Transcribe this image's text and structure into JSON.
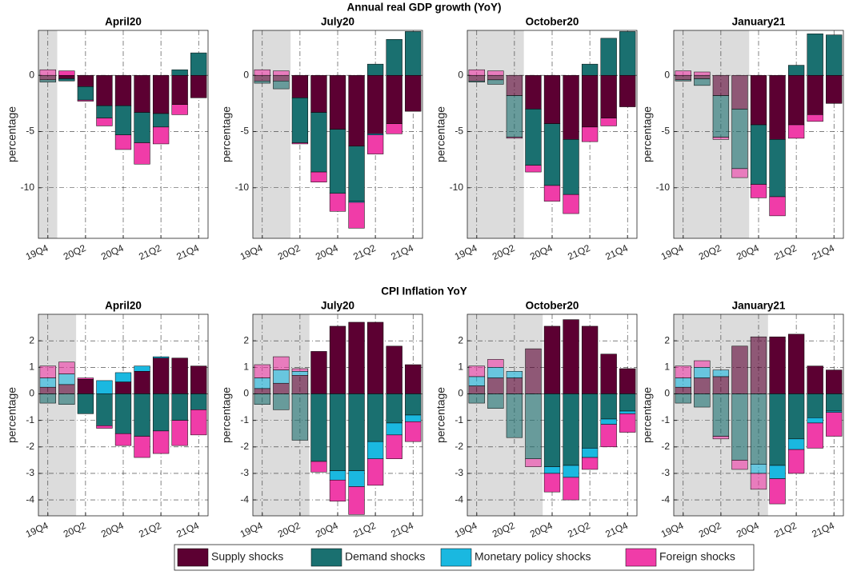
{
  "chart_data": [
    {
      "type": "stacked_bar",
      "suptitle": "Annual real GDP growth (YoY)",
      "title": "April20",
      "ylabel": "percentage",
      "categories": [
        "19Q4",
        null,
        "20Q2",
        null,
        "20Q4",
        null,
        "21Q2",
        null,
        "21Q4"
      ],
      "ylim": [
        -14.5,
        4
      ],
      "yticks": [
        -10,
        -5,
        0
      ],
      "grid": true,
      "shaded_until": 0.5,
      "series": [
        {
          "name": "Supply shocks",
          "color": "#5c0032",
          "values": [
            -0.4,
            -0.3,
            -1.0,
            -2.7,
            -2.7,
            -3.3,
            -3.4,
            -2.6,
            -2.0
          ]
        },
        {
          "name": "Demand shocks",
          "color": "#1a7070",
          "values": [
            -0.2,
            -0.2,
            -1.2,
            -1.1,
            -2.6,
            -2.7,
            -1.2,
            0.5,
            2.0
          ]
        },
        {
          "name": "Monetary policy shocks",
          "color": "#1ab8e0",
          "values": [
            0,
            0,
            0,
            0,
            0,
            0,
            0,
            0,
            0
          ]
        },
        {
          "name": "Foreign shocks",
          "color": "#f03ca8",
          "values": [
            0.5,
            0.4,
            -0.1,
            -0.7,
            -1.3,
            -1.9,
            -1.5,
            -0.9,
            0
          ]
        }
      ]
    },
    {
      "type": "stacked_bar",
      "title": "July20",
      "ylabel": "percentage",
      "categories": [
        "19Q4",
        null,
        "20Q2",
        null,
        "20Q4",
        null,
        "21Q2",
        null,
        "21Q4"
      ],
      "ylim": [
        -14.5,
        4
      ],
      "yticks": [
        -10,
        -5,
        0
      ],
      "grid": true,
      "shaded_until": 1.5,
      "series": [
        {
          "name": "Supply shocks",
          "color": "#5c0032",
          "values": [
            -0.5,
            -0.5,
            -2.0,
            -3.3,
            -4.8,
            -6.3,
            -5.2,
            -4.3,
            -3.2
          ]
        },
        {
          "name": "Demand shocks",
          "color": "#1a7070",
          "values": [
            -0.2,
            -0.7,
            -4.0,
            -5.3,
            -5.7,
            -4.9,
            1.0,
            3.2,
            3.9
          ]
        },
        {
          "name": "Monetary policy shocks",
          "color": "#1ab8e0",
          "values": [
            0,
            0,
            0,
            0,
            0,
            -0.1,
            -0.1,
            0,
            0
          ]
        },
        {
          "name": "Foreign shocks",
          "color": "#f03ca8",
          "values": [
            0.5,
            0.4,
            -0.1,
            -0.9,
            -1.6,
            -2.3,
            -1.7,
            -0.9,
            0
          ]
        }
      ]
    },
    {
      "type": "stacked_bar",
      "title": "October20",
      "ylabel": "percentage",
      "categories": [
        "19Q4",
        null,
        "20Q2",
        null,
        "20Q4",
        null,
        "21Q2",
        null,
        "21Q4"
      ],
      "ylim": [
        -14.5,
        4
      ],
      "yticks": [
        -10,
        -5,
        0
      ],
      "grid": true,
      "shaded_until": 2.5,
      "series": [
        {
          "name": "Supply shocks",
          "color": "#5c0032",
          "values": [
            -0.5,
            -0.4,
            -1.8,
            -3.0,
            -4.3,
            -5.7,
            -4.6,
            -3.8,
            -2.8
          ]
        },
        {
          "name": "Demand shocks",
          "color": "#1a7070",
          "values": [
            -0.1,
            -0.4,
            -3.7,
            -5.0,
            -5.5,
            -4.9,
            1.0,
            3.3,
            3.9
          ]
        },
        {
          "name": "Monetary policy shocks",
          "color": "#1ab8e0",
          "values": [
            0,
            0,
            0,
            0,
            0,
            0,
            0,
            0,
            0
          ]
        },
        {
          "name": "Foreign shocks",
          "color": "#f03ca8",
          "values": [
            0.5,
            0.4,
            -0.1,
            -0.6,
            -1.4,
            -1.7,
            -1.3,
            -0.7,
            0
          ]
        }
      ]
    },
    {
      "type": "stacked_bar",
      "title": "January21",
      "ylabel": "percentage",
      "categories": [
        "19Q4",
        null,
        "20Q2",
        null,
        "20Q4",
        null,
        "21Q2",
        null,
        "21Q4"
      ],
      "ylim": [
        -14.5,
        4
      ],
      "yticks": [
        -10,
        -5,
        0
      ],
      "grid": true,
      "shaded_until": 3.5,
      "series": [
        {
          "name": "Supply shocks",
          "color": "#5c0032",
          "values": [
            -0.4,
            -0.3,
            -1.8,
            -3.0,
            -4.4,
            -5.7,
            -4.4,
            -3.5,
            -2.5
          ]
        },
        {
          "name": "Demand shocks",
          "color": "#1a7070",
          "values": [
            -0.1,
            -0.6,
            -3.7,
            -5.3,
            -5.3,
            -5.1,
            0.9,
            3.7,
            3.6
          ]
        },
        {
          "name": "Monetary policy shocks",
          "color": "#1ab8e0",
          "values": [
            0,
            0,
            0,
            0,
            0,
            0,
            0,
            0,
            0
          ]
        },
        {
          "name": "Foreign shocks",
          "color": "#f03ca8",
          "values": [
            0.4,
            0.3,
            -0.2,
            -0.8,
            -1.2,
            -1.7,
            -1.2,
            -0.6,
            0
          ]
        }
      ]
    },
    {
      "type": "stacked_bar",
      "suptitle": "CPI Inflation YoY",
      "title": "April20",
      "ylabel": "percentage",
      "categories": [
        "19Q4",
        null,
        "20Q2",
        null,
        "20Q4",
        null,
        "21Q2",
        null,
        "21Q4"
      ],
      "ylim": [
        -4.6,
        3
      ],
      "yticks": [
        -4,
        -3,
        -2,
        -1,
        0,
        1,
        2
      ],
      "grid": true,
      "shaded_until": 1.5,
      "series": [
        {
          "name": "Supply shocks",
          "color": "#5c0032",
          "values": [
            0.25,
            0.35,
            0.55,
            0,
            0.45,
            0.85,
            1.35,
            1.35,
            1.05
          ]
        },
        {
          "name": "Demand shocks",
          "color": "#1a7070",
          "values": [
            -0.35,
            -0.4,
            -0.75,
            -1.2,
            -1.5,
            -1.6,
            -1.4,
            -1.0,
            -0.6
          ]
        },
        {
          "name": "Monetary policy shocks",
          "color": "#1ab8e0",
          "values": [
            0.35,
            0.4,
            0,
            0.5,
            0.35,
            0.2,
            0.05,
            0,
            0
          ]
        },
        {
          "name": "Foreign shocks",
          "color": "#f03ca8",
          "values": [
            0.45,
            0.45,
            0.05,
            -0.1,
            -0.45,
            -0.8,
            -0.85,
            -0.95,
            -0.95
          ]
        }
      ]
    },
    {
      "type": "stacked_bar",
      "title": "July20",
      "ylabel": "percentage",
      "categories": [
        "19Q4",
        null,
        "20Q2",
        null,
        "20Q4",
        null,
        "21Q2",
        null,
        "21Q4"
      ],
      "ylim": [
        -4.6,
        3
      ],
      "yticks": [
        -4,
        -3,
        -2,
        -1,
        0,
        1,
        2
      ],
      "grid": true,
      "shaded_until": 2.5,
      "series": [
        {
          "name": "Supply shocks",
          "color": "#5c0032",
          "values": [
            0.2,
            0.4,
            0.7,
            1.6,
            2.55,
            2.7,
            2.7,
            1.8,
            1.1
          ]
        },
        {
          "name": "Demand shocks",
          "color": "#1a7070",
          "values": [
            -0.4,
            -0.6,
            -1.75,
            -2.55,
            -2.9,
            -2.9,
            -1.8,
            -1.1,
            -0.8
          ]
        },
        {
          "name": "Monetary policy shocks",
          "color": "#1ab8e0",
          "values": [
            0.4,
            0.5,
            0.15,
            0,
            -0.35,
            -0.6,
            -0.65,
            -0.45,
            -0.25
          ]
        },
        {
          "name": "Foreign shocks",
          "color": "#f03ca8",
          "values": [
            0.5,
            0.5,
            0.1,
            -0.4,
            -0.8,
            -1.05,
            -1.0,
            -0.9,
            -0.75
          ]
        }
      ]
    },
    {
      "type": "stacked_bar",
      "title": "October20",
      "ylabel": "percentage",
      "categories": [
        "19Q4",
        null,
        "20Q2",
        null,
        "20Q4",
        null,
        "21Q2",
        null,
        "21Q4"
      ],
      "ylim": [
        -4.6,
        3
      ],
      "yticks": [
        -4,
        -3,
        -2,
        -1,
        0,
        1,
        2
      ],
      "grid": true,
      "shaded_until": 3.5,
      "series": [
        {
          "name": "Supply shocks",
          "color": "#5c0032",
          "values": [
            0.3,
            0.6,
            0.6,
            1.7,
            2.55,
            2.8,
            2.55,
            1.5,
            0.95
          ]
        },
        {
          "name": "Demand shocks",
          "color": "#1a7070",
          "values": [
            -0.35,
            -0.55,
            -1.65,
            -2.45,
            -2.75,
            -2.7,
            -2.05,
            -0.95,
            -0.65
          ]
        },
        {
          "name": "Monetary policy shocks",
          "color": "#1ab8e0",
          "values": [
            0.35,
            0.4,
            0.25,
            0,
            -0.25,
            -0.45,
            -0.35,
            -0.2,
            -0.1
          ]
        },
        {
          "name": "Foreign shocks",
          "color": "#f03ca8",
          "values": [
            0.4,
            0.3,
            0,
            -0.3,
            -0.7,
            -0.85,
            -0.45,
            -0.85,
            -0.7
          ]
        }
      ]
    },
    {
      "type": "stacked_bar",
      "title": "January21",
      "ylabel": "percentage",
      "categories": [
        "19Q4",
        null,
        "20Q2",
        null,
        "20Q4",
        null,
        "21Q2",
        null,
        "21Q4"
      ],
      "ylim": [
        -4.6,
        3
      ],
      "yticks": [
        -4,
        -3,
        -2,
        -1,
        0,
        1,
        2
      ],
      "grid": true,
      "shaded_until": 4.5,
      "series": [
        {
          "name": "Supply shocks",
          "color": "#5c0032",
          "values": [
            0.25,
            0.6,
            0.65,
            1.8,
            2.15,
            2.15,
            2.25,
            1.05,
            0.9
          ]
        },
        {
          "name": "Demand shocks",
          "color": "#1a7070",
          "values": [
            -0.35,
            -0.5,
            -1.6,
            -2.5,
            -2.65,
            -2.7,
            -1.7,
            -0.9,
            -0.65
          ]
        },
        {
          "name": "Monetary policy shocks",
          "color": "#1ab8e0",
          "values": [
            0.35,
            0.4,
            0.25,
            0,
            -0.35,
            -0.5,
            -0.4,
            -0.2,
            -0.05
          ]
        },
        {
          "name": "Foreign shocks",
          "color": "#f03ca8",
          "values": [
            0.45,
            0.25,
            -0.1,
            -0.35,
            -0.6,
            -0.95,
            -0.9,
            -0.95,
            -0.9
          ]
        }
      ]
    }
  ]
}
